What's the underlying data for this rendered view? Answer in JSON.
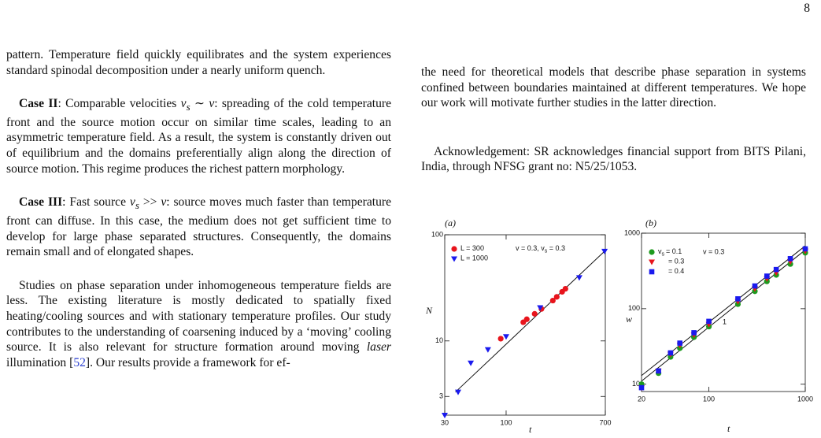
{
  "page_number": "8",
  "left_column": {
    "p1": "pattern. Temperature field quickly equilibrates and the system experiences standard spinodal decomposition under a nearly uniform quench.",
    "case2": [
      "Case II",
      ": Comparable velocities ",
      "v",
      "s",
      " ∼ ",
      "v",
      ": spreading of the cold temperature front and the source motion occur on similar time scales, leading to an asymmetric temperature field. As a result, the system is constantly driven out of equilibrium and the domains preferentially align along the direction of source motion. This regime produces the richest pattern morphology."
    ],
    "case3": [
      "Case III",
      ": Fast source ",
      "v",
      "s",
      " >> ",
      "v",
      ": source moves much faster than temperature front can diffuse. In this case, the medium does not get sufficient time to develop for large phase separated structures. Consequently, the domains remain small and of elongated shapes."
    ],
    "p4": [
      "Studies on phase separation under inhomogeneous temperature fields are less. The existing literature is mostly dedicated to spatially fixed heating/cooling sources and with stationary temperature profiles. Our study contributes to the understanding of coarsening induced by a ‘moving’ cooling source. It is also relevant for structure formation around moving ",
      "laser",
      " illumination [",
      "52",
      "]. Our results provide a framework for ef-"
    ]
  },
  "right_column": {
    "p1": "the need for theoretical models that describe phase separation in systems confined between boundaries maintained at different temperatures. We hope our work will motivate further studies in the latter direction.",
    "acknowledgement": "Acknowledgement: SR acknowledges financial support from BITS Pilani, India, through NFSG grant no: N5/25/1053."
  },
  "chart_data": [
    {
      "type": "scatter",
      "panel_label": "(a)",
      "xlabel": "t",
      "ylabel": "N",
      "log_x": true,
      "log_y": true,
      "xlim": [
        30,
        700
      ],
      "ylim": [
        2,
        100
      ],
      "xticks": [
        30,
        100,
        700
      ],
      "yticks": [
        3,
        10,
        100
      ],
      "annotation": [
        "v = 0.3, v",
        "s",
        " = 0.3"
      ],
      "series": [
        {
          "name": "L = 300",
          "color": "#e8141c",
          "marker": "circle",
          "x": [
            90,
            140,
            150,
            175,
            200,
            250,
            270,
            300,
            320
          ],
          "values": [
            10.5,
            15,
            16,
            18,
            20,
            24,
            26,
            29,
            31
          ]
        },
        {
          "name": "L = 1000",
          "color": "#1a1aee",
          "marker": "triangle-down",
          "x": [
            30,
            39,
            50,
            70,
            100,
            195,
            420,
            690
          ],
          "values": [
            2,
            3.3,
            6.2,
            8.3,
            11,
            20.6,
            39.5,
            70
          ]
        }
      ],
      "fit_lines": [
        {
          "x": [
            37,
            700
          ],
          "values": [
            3.3,
            71
          ]
        }
      ]
    },
    {
      "type": "scatter",
      "panel_label": "(b)",
      "xlabel": "t",
      "ylabel": "w",
      "log_x": true,
      "log_y": true,
      "xlim": [
        20,
        1000
      ],
      "ylim": [
        8,
        1000
      ],
      "xticks": [
        20,
        100,
        1000
      ],
      "yticks": [
        10,
        100,
        1000
      ],
      "legend_prefix": [
        "v",
        "s"
      ],
      "annotation": "v = 0.3",
      "slope_label": "1",
      "series": [
        {
          "name": "= 0.1",
          "color": "#1e9a1e",
          "marker": "circle",
          "x": [
            20,
            30,
            40,
            50,
            70,
            100,
            200,
            300,
            400,
            500,
            700,
            1000
          ],
          "values": [
            10,
            14,
            23,
            30,
            42,
            58,
            115,
            170,
            230,
            280,
            390,
            550
          ]
        },
        {
          "name": "= 0.3",
          "color": "#e8141c",
          "marker": "triangle-down",
          "x": [
            20,
            30,
            40,
            50,
            70,
            100,
            200,
            300,
            400,
            500,
            700,
            1000
          ],
          "values": [
            9,
            15,
            25,
            33,
            45,
            62,
            125,
            185,
            250,
            300,
            420,
            580
          ]
        },
        {
          "name": "= 0.4",
          "color": "#1a1aee",
          "marker": "square",
          "x": [
            20,
            30,
            40,
            50,
            70,
            100,
            200,
            300,
            400,
            500,
            700,
            1000
          ],
          "values": [
            9,
            15,
            26,
            35,
            48,
            68,
            135,
            200,
            270,
            330,
            460,
            620
          ]
        }
      ],
      "fit_lines": [
        {
          "x": [
            20,
            1000
          ],
          "values": [
            11,
            600
          ]
        },
        {
          "x": [
            20,
            1000
          ],
          "values": [
            13,
            680
          ]
        }
      ]
    }
  ]
}
